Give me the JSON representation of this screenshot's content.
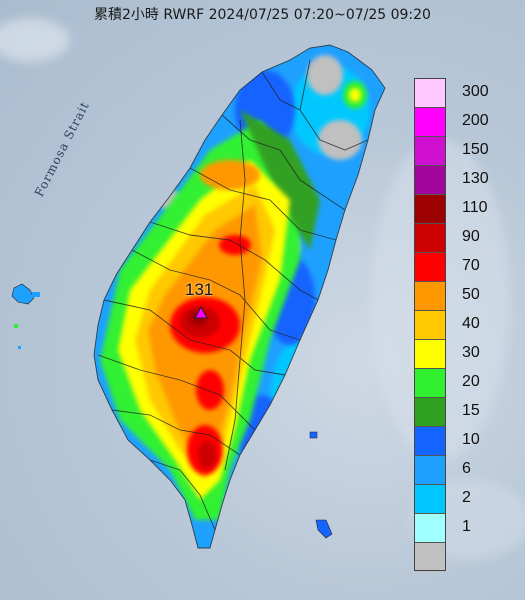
{
  "title": "累積2小時 RWRF 2024/07/25 07:20~07/25 09:20",
  "sea_label": "Formosa Strait",
  "max_value": "131",
  "legend": [
    {
      "label": "300",
      "color": "#ffc8ff"
    },
    {
      "label": "200",
      "color": "#ff00ff"
    },
    {
      "label": "150",
      "color": "#d010d0"
    },
    {
      "label": "130",
      "color": "#a0069c"
    },
    {
      "label": "110",
      "color": "#9c0000"
    },
    {
      "label": "90",
      "color": "#cc0000"
    },
    {
      "label": "70",
      "color": "#ff0000"
    },
    {
      "label": "50",
      "color": "#ff9800"
    },
    {
      "label": "40",
      "color": "#ffc800"
    },
    {
      "label": "30",
      "color": "#ffff00"
    },
    {
      "label": "20",
      "color": "#30f030"
    },
    {
      "label": "15",
      "color": "#30a020"
    },
    {
      "label": "10",
      "color": "#1464ff"
    },
    {
      "label": "6",
      "color": "#1ea0ff"
    },
    {
      "label": "2",
      "color": "#00c8ff"
    },
    {
      "label": "1",
      "color": "#a0ffff"
    },
    {
      "label": "",
      "color": "#c0c0c0"
    }
  ]
}
